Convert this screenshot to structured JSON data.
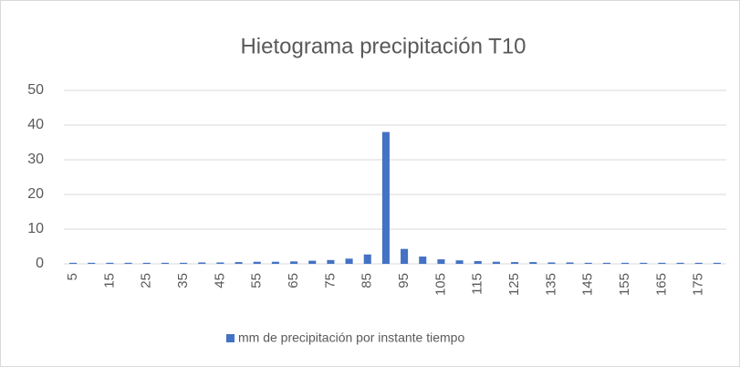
{
  "chart_data": {
    "type": "bar",
    "title": "Hietograma precipitación T10",
    "categories": [
      "5",
      null,
      "15",
      null,
      "25",
      null,
      "35",
      null,
      "45",
      null,
      "55",
      null,
      "65",
      null,
      "75",
      null,
      "85",
      null,
      "95",
      null,
      "105",
      null,
      "115",
      null,
      "125",
      null,
      "135",
      null,
      "145",
      null,
      "155",
      null,
      "165",
      null,
      "175",
      null
    ],
    "series": [
      {
        "name": "mm de precipitación por instante tiempo",
        "color": "#4472c4",
        "values": [
          0.3,
          0.3,
          0.3,
          0.3,
          0.3,
          0.3,
          0.3,
          0.4,
          0.4,
          0.5,
          0.6,
          0.6,
          0.7,
          0.9,
          1.1,
          1.5,
          2.7,
          38,
          4.3,
          2.1,
          1.3,
          1.0,
          0.8,
          0.6,
          0.5,
          0.5,
          0.4,
          0.4,
          0.3,
          0.3,
          0.3,
          0.3,
          0.3,
          0.3,
          0.3,
          0.3
        ]
      }
    ],
    "ylim": [
      0,
      50
    ],
    "yticks": [
      0,
      10,
      20,
      30,
      40,
      50
    ],
    "grid": true,
    "legend": "bottom"
  }
}
